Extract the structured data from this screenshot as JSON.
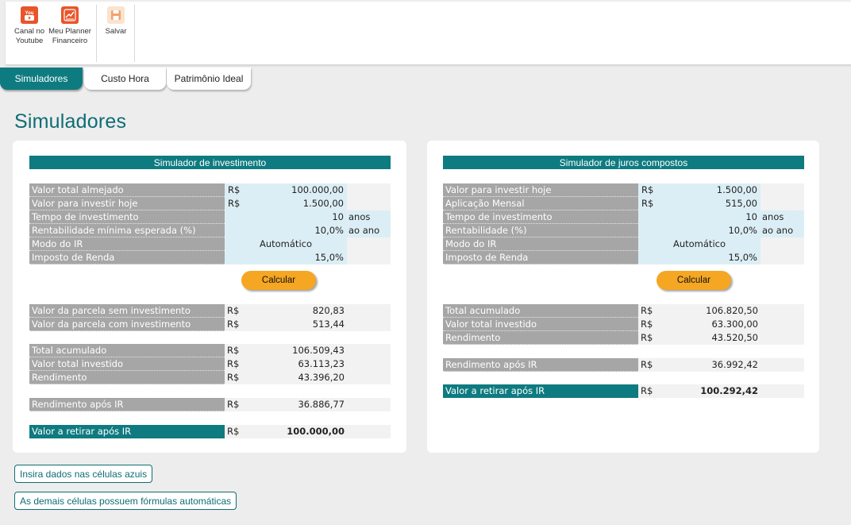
{
  "ribbon": {
    "youtube_label_1": "Canal no",
    "youtube_label_2": "Youtube",
    "youtube_icon_text": "You",
    "planner_label_1": "Meu Planner",
    "planner_label_2": "Financeiro",
    "save_label": "Salvar"
  },
  "tabs": [
    "Simuladores",
    "Custo Hora",
    "Patrimônio Ideal"
  ],
  "page_title": "Simuladores",
  "colors": {
    "teal": "#0e7b80",
    "orange": "#f5a623",
    "youtube": "#e8552b",
    "planner": "#e8552b"
  },
  "investimento": {
    "header": "Simulador de investimento",
    "inputs": {
      "valor_total_label": "Valor total almejado",
      "valor_total_cur": "R$",
      "valor_total_val": "100.000,00",
      "valor_hoje_label": "Valor para investir hoje",
      "valor_hoje_cur": "R$",
      "valor_hoje_val": "1.500,00",
      "tempo_label": "Tempo de investimento",
      "tempo_val": "10",
      "tempo_unit": "anos",
      "rent_label": "Rentabilidade mínima esperada (%)",
      "rent_val": "10,0%",
      "rent_unit": "ao ano",
      "modo_label": "Modo do IR",
      "modo_val": "Automático",
      "ir_label": "Imposto de Renda",
      "ir_val": "15,0%"
    },
    "calc_label": "Calcular",
    "out": {
      "parc_sem_label": "Valor da parcela sem investimento",
      "parc_sem_cur": "R$",
      "parc_sem_val": "820,83",
      "parc_com_label": "Valor da parcela com investimento",
      "parc_com_cur": "R$",
      "parc_com_val": "513,44",
      "total_label": "Total acumulado",
      "total_cur": "R$",
      "total_val": "106.509,43",
      "invest_label": "Valor total investido",
      "invest_cur": "R$",
      "invest_val": "63.113,23",
      "rend_label": "Rendimento",
      "rend_cur": "R$",
      "rend_val": "43.396,20",
      "rend_ir_label": "Rendimento após IR",
      "rend_ir_cur": "R$",
      "rend_ir_val": "36.886,77",
      "retirar_label": "Valor a retirar após IR",
      "retirar_cur": "R$",
      "retirar_val": "100.000,00"
    }
  },
  "juros": {
    "header": "Simulador de juros compostos",
    "inputs": {
      "valor_hoje_label": "Valor para investir hoje",
      "valor_hoje_cur": "R$",
      "valor_hoje_val": "1.500,00",
      "aplic_label": "Aplicação Mensal",
      "aplic_cur": "R$",
      "aplic_val": "515,00",
      "tempo_label": "Tempo de investimento",
      "tempo_val": "10",
      "tempo_unit": "anos",
      "rent_label": "Rentabilidade (%)",
      "rent_val": "10,0%",
      "rent_unit": "ao ano",
      "modo_label": "Modo do IR",
      "modo_val": "Automático",
      "ir_label": "Imposto de Renda",
      "ir_val": "15,0%"
    },
    "calc_label": "Calcular",
    "out": {
      "total_label": "Total acumulado",
      "total_cur": "R$",
      "total_val": "106.820,50",
      "invest_label": "Valor total investido",
      "invest_cur": "R$",
      "invest_val": "63.300,00",
      "rend_label": "Rendimento",
      "rend_cur": "R$",
      "rend_val": "43.520,50",
      "rend_ir_label": "Rendimento após IR",
      "rend_ir_cur": "R$",
      "rend_ir_val": "36.992,42",
      "retirar_label": "Valor a retirar após IR",
      "retirar_cur": "R$",
      "retirar_val": "100.292,42"
    }
  },
  "notes": {
    "blue_cells": "Insira dados nas células azuis",
    "formulas": "As demais células possuem fórmulas automáticas"
  }
}
